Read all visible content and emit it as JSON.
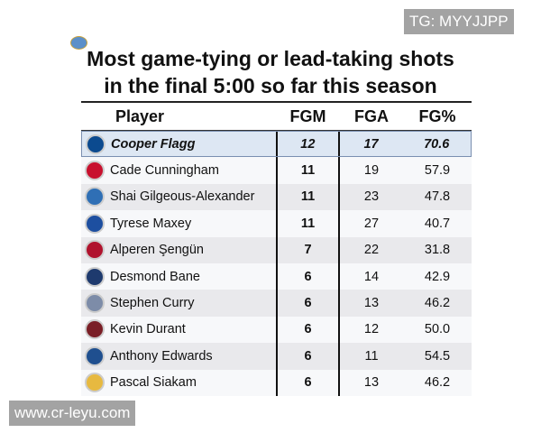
{
  "title_line1": "Most game-tying or lead-taking shots",
  "title_line2": "in the final 5:00 so far this season",
  "headers": {
    "player": "Player",
    "fgm": "FGM",
    "fga": "FGA",
    "fgp": "FG%"
  },
  "rows": [
    {
      "player": "Cooper Flagg",
      "team_icon": "mavericks-logo-icon",
      "color": "#0b4a8f",
      "fgm": "12",
      "fga": "17",
      "fgp": "70.6"
    },
    {
      "player": "Cade Cunningham",
      "team_icon": "pistons-logo-icon",
      "color": "#c8102e",
      "fgm": "11",
      "fga": "19",
      "fgp": "57.9"
    },
    {
      "player": "Shai Gilgeous-Alexander",
      "team_icon": "thunder-logo-icon",
      "color": "#2f6fb5",
      "fgm": "11",
      "fga": "23",
      "fgp": "47.8"
    },
    {
      "player": "Tyrese Maxey",
      "team_icon": "76ers-logo-icon",
      "color": "#1d4fa0",
      "fgm": "11",
      "fga": "27",
      "fgp": "40.7"
    },
    {
      "player": "Alperen Şengün",
      "team_icon": "rockets-logo-icon",
      "color": "#b0122d",
      "fgm": "7",
      "fga": "22",
      "fgp": "31.8"
    },
    {
      "player": "Desmond Bane",
      "team_icon": "magic-logo-icon",
      "color": "#1e3a6e",
      "fgm": "6",
      "fga": "14",
      "fgp": "42.9"
    },
    {
      "player": "Stephen Curry",
      "team_icon": "warriors-logo-icon",
      "color": "#7d8ca8",
      "fgm": "6",
      "fga": "13",
      "fgp": "46.2"
    },
    {
      "player": "Kevin Durant",
      "team_icon": "rockets-logo-icon",
      "color": "#7a1e26",
      "fgm": "6",
      "fga": "12",
      "fgp": "50.0"
    },
    {
      "player": "Anthony Edwards",
      "team_icon": "timberwolves-logo-icon",
      "color": "#1f4f8f",
      "fgm": "6",
      "fga": "11",
      "fgp": "54.5"
    },
    {
      "player": "Pascal Siakam",
      "team_icon": "pacers-logo-icon",
      "color": "#e7b940",
      "fgm": "6",
      "fga": "13",
      "fgp": "46.2"
    }
  ],
  "watermark_top": "TG: MYYJJPP",
  "watermark_bottom": "www.cr-leyu.com"
}
